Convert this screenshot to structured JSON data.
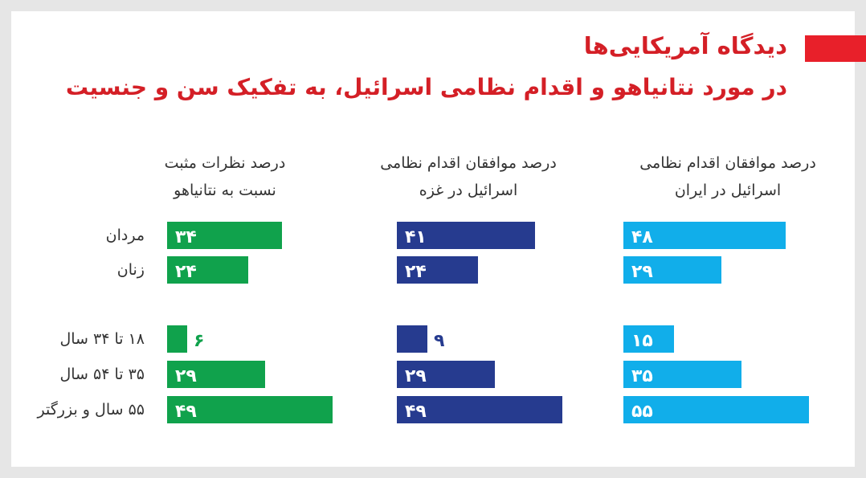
{
  "title": {
    "line1": "دیدگاه آمریکایی‌ها",
    "line2": "در مورد نتانیاهو و اقدام نظامی اسرائیل، به تفکیک سن و جنسیت"
  },
  "colors": {
    "accent": "#e8202a",
    "green": "#10a24c",
    "navy": "#263b8f",
    "cyan": "#11aeea"
  },
  "chart_data": {
    "type": "bar",
    "orientation": "horizontal",
    "categories": [
      "مردان",
      "زنان",
      "۱۸ تا ۳۴ سال",
      "۳۵ تا ۵۴ سال",
      "۵۵ سال و بزرگتر"
    ],
    "series": [
      {
        "name": "درصد نظرات مثبت\nنسبت به نتانیاهو",
        "color": "#10a24c",
        "values": [
          34,
          24,
          6,
          29,
          49
        ],
        "labels": [
          "۳۴",
          "۲۴",
          "۶",
          "۲۹",
          "۴۹"
        ]
      },
      {
        "name": "درصد موافقان اقدام نظامی\nاسرائیل در غزه",
        "color": "#263b8f",
        "values": [
          41,
          24,
          9,
          29,
          49
        ],
        "labels": [
          "۴۱",
          "۲۴",
          "۹",
          "۲۹",
          "۴۹"
        ]
      },
      {
        "name": "درصد موافقان اقدام نظامی\nاسرائیل در ایران",
        "color": "#11aeea",
        "values": [
          48,
          29,
          15,
          35,
          55
        ],
        "labels": [
          "۴۸",
          "۲۹",
          "۱۵",
          "۳۵",
          "۵۵"
        ]
      }
    ],
    "xlim": [
      0,
      55
    ]
  }
}
